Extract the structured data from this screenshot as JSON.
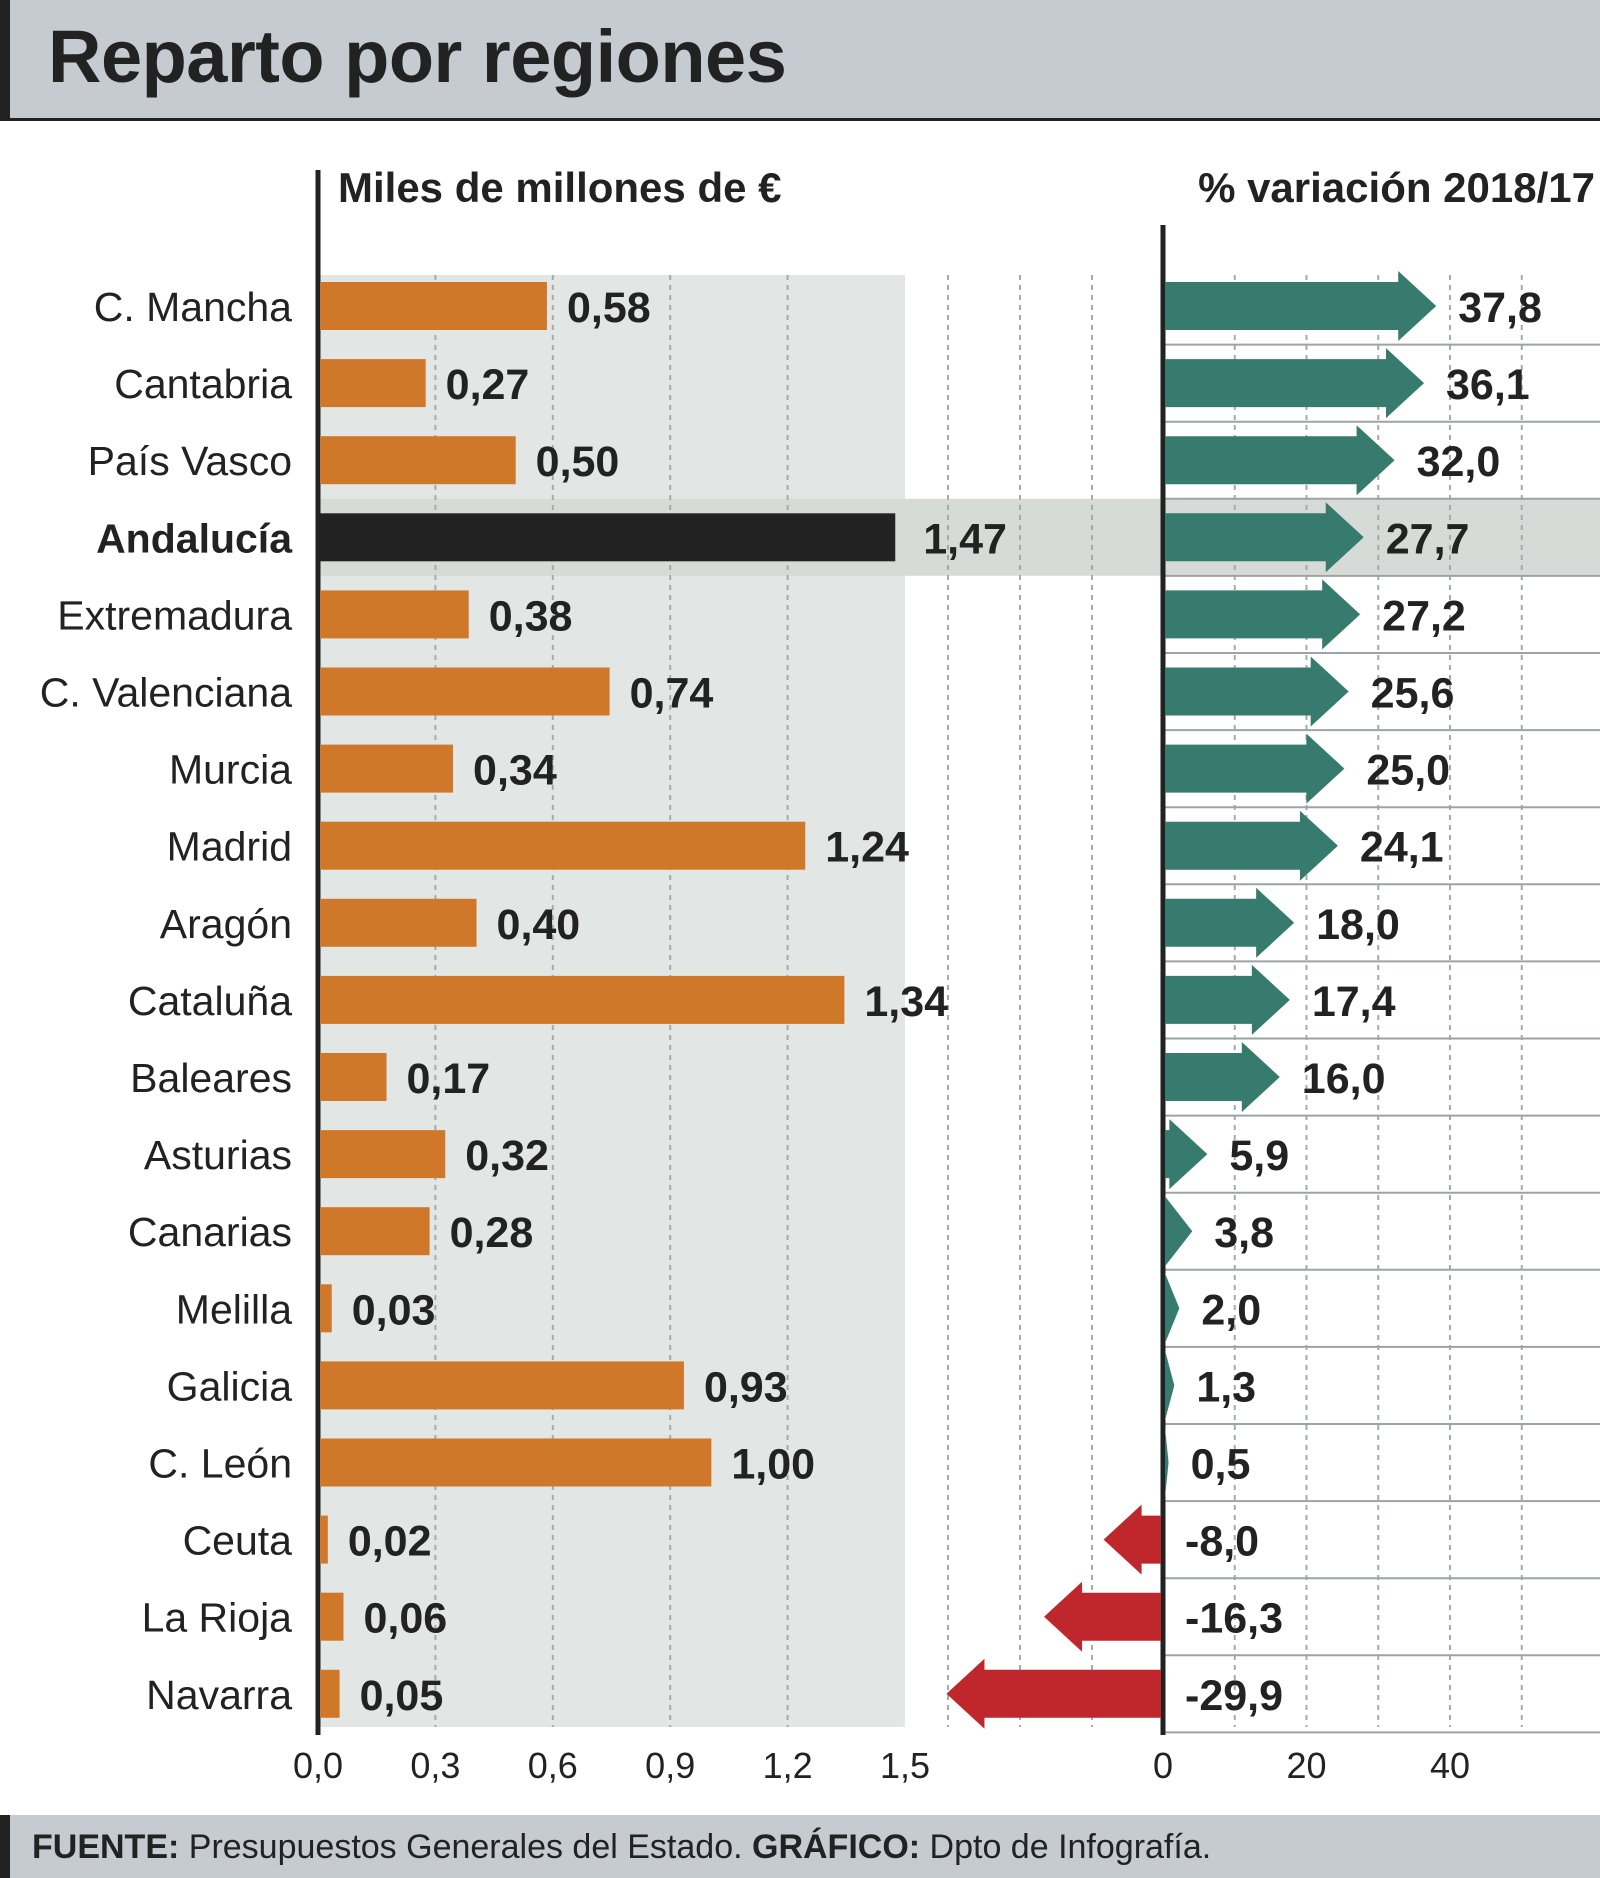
{
  "title": "Reparto por regiones",
  "colors": {
    "bar": "#d0782a",
    "highlight_bar": "#222222",
    "positive_arrow": "#367b6e",
    "negative_arrow": "#c0272d",
    "panel_bg": "#e2e6e4",
    "highlight_row": "#d6dbd8"
  },
  "chart_data": {
    "type": "bar",
    "highlight": "Andalucía",
    "categories": [
      "C. Mancha",
      "Cantabria",
      "País Vasco",
      "Andalucía",
      "Extremadura",
      "C. Valenciana",
      "Murcia",
      "Madrid",
      "Aragón",
      "Cataluña",
      "Baleares",
      "Asturias",
      "Canarias",
      "Melilla",
      "Galicia",
      "C. León",
      "Ceuta",
      "La Rioja",
      "Navarra"
    ],
    "series": [
      {
        "name": "Miles de millones de €",
        "values": [
          0.58,
          0.27,
          0.5,
          1.47,
          0.38,
          0.74,
          0.34,
          1.24,
          0.4,
          1.34,
          0.17,
          0.32,
          0.28,
          0.03,
          0.93,
          1.0,
          0.02,
          0.06,
          0.05
        ],
        "labels": [
          "0,58",
          "0,27",
          "0,50",
          "1,47",
          "0,38",
          "0,74",
          "0,34",
          "1,24",
          "0,40",
          "1,34",
          "0,17",
          "0,32",
          "0,28",
          "0,03",
          "0,93",
          "1,00",
          "0,02",
          "0,06",
          "0,05"
        ],
        "xlim": [
          0,
          1.5
        ],
        "ticks": [
          "0,0",
          "0,3",
          "0,6",
          "0,9",
          "1,2",
          "1,5"
        ]
      },
      {
        "name": "% variación 2018/17",
        "values": [
          37.8,
          36.1,
          32.0,
          27.7,
          27.2,
          25.6,
          25.0,
          24.1,
          18.0,
          17.4,
          16.0,
          5.9,
          3.8,
          2.0,
          1.3,
          0.5,
          -8.0,
          -16.3,
          -29.9
        ],
        "labels": [
          "37,8",
          "36,1",
          "32,0",
          "27,7",
          "27,2",
          "25,6",
          "25,0",
          "24,1",
          "18,0",
          "17,4",
          "16,0",
          "5,9",
          "3,8",
          "2,0",
          "1,3",
          "0,5",
          "-8,0",
          "-16,3",
          "-29,9"
        ],
        "xlim": [
          -30,
          60
        ],
        "ticks": [
          "0",
          "20",
          "40"
        ]
      }
    ]
  },
  "footer": {
    "source_label": "FUENTE:",
    "source_text": " Presupuestos Generales del Estado. ",
    "graphic_label": "GRÁFICO:",
    "graphic_text": " Dpto de Infografía."
  }
}
